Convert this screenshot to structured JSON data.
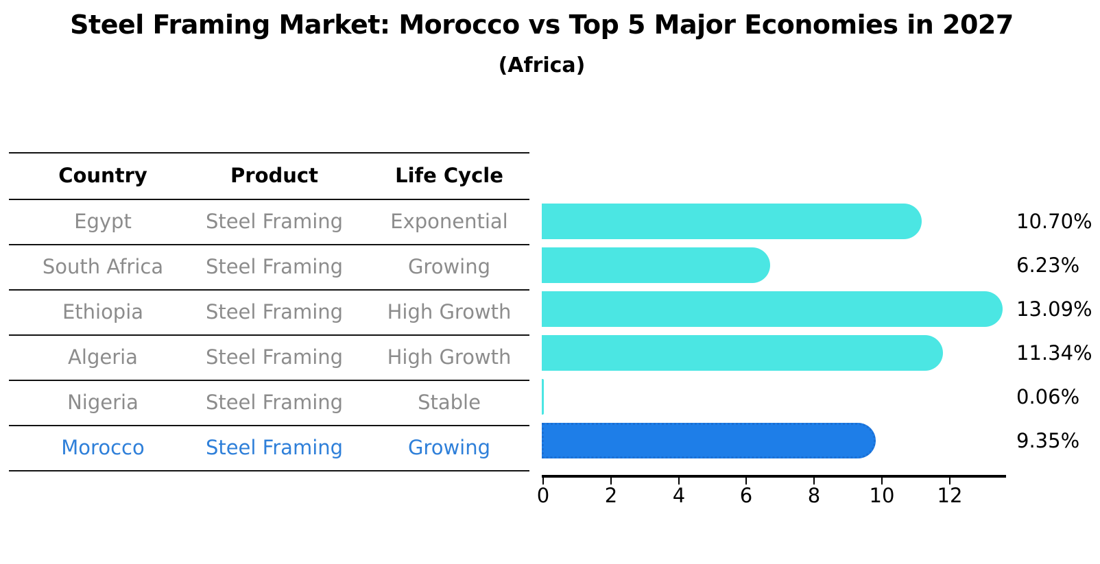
{
  "header": {
    "title": "Steel Framing Market: Morocco vs Top 5 Major Economies in 2027",
    "subtitle": "(Africa)"
  },
  "table": {
    "columns": [
      "Country",
      "Product",
      "Life Cycle"
    ],
    "rows": [
      {
        "country": "Egypt",
        "product": "Steel Framing",
        "life_cycle": "Exponential",
        "highlighted": false
      },
      {
        "country": "South Africa",
        "product": "Steel Framing",
        "life_cycle": "Growing",
        "highlighted": false
      },
      {
        "country": "Ethiopia",
        "product": "Steel Framing",
        "life_cycle": "High Growth",
        "highlighted": false
      },
      {
        "country": "Algeria",
        "product": "Steel Framing",
        "life_cycle": "High Growth",
        "highlighted": false
      },
      {
        "country": "Nigeria",
        "product": "Steel Framing",
        "life_cycle": "Stable",
        "highlighted": false
      },
      {
        "country": "Morocco",
        "product": "Steel Framing",
        "life_cycle": "Growing",
        "highlighted": true
      }
    ]
  },
  "chart_data": {
    "type": "bar",
    "orientation": "horizontal",
    "title": "Steel Framing Market: Morocco vs Top 5 Major Economies in 2027",
    "subtitle": "(Africa)",
    "categories": [
      "Egypt",
      "South Africa",
      "Ethiopia",
      "Algeria",
      "Nigeria",
      "Morocco"
    ],
    "values": [
      10.7,
      6.23,
      13.09,
      11.34,
      0.06,
      9.35
    ],
    "value_labels": [
      "10.70%",
      "6.23%",
      "13.09%",
      "11.34%",
      "0.06%",
      "9.35%"
    ],
    "unit": "%",
    "x_ticks": [
      0,
      2,
      4,
      6,
      8,
      10,
      12
    ],
    "xlim": [
      0,
      13.75
    ],
    "grid": false,
    "legend": false,
    "highlight_category": "Morocco",
    "colors": {
      "bar": "#4BE6E3",
      "highlight_bar": "#1E7EE8",
      "highlight_edge": "#1A6FD4",
      "highlight_text": "#2E7FD9",
      "muted_text": "#8C8C8C",
      "axis_text": "#000000"
    }
  }
}
